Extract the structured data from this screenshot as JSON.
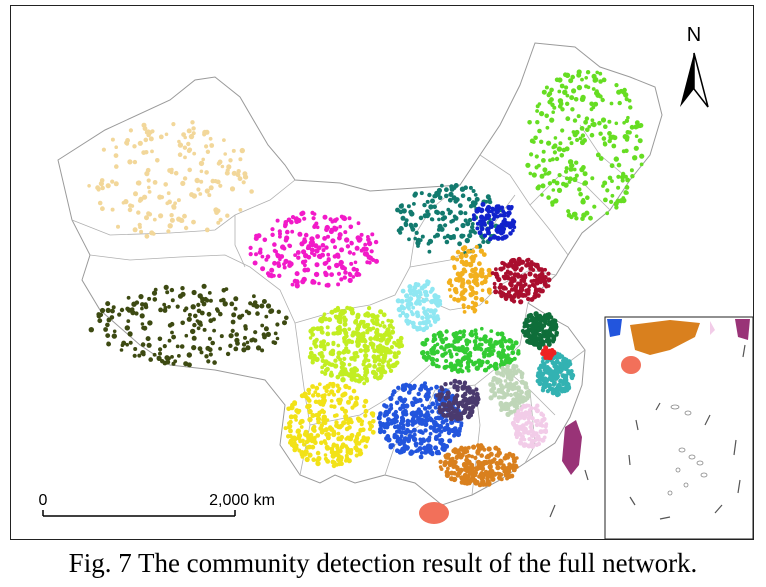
{
  "caption": "Fig. 7 The community detection result of the full network.",
  "north_arrow": {
    "label": "N"
  },
  "scale_bar": {
    "start_label": "0",
    "end_label": "2,000 km"
  },
  "communities": [
    {
      "id": "xinjiang",
      "color": "#f2d79a"
    },
    {
      "id": "tibet",
      "color": "#3d4a12"
    },
    {
      "id": "gansu-qinghai",
      "color": "#f21ac8"
    },
    {
      "id": "inner-mongolia-north",
      "color": "#127a6e"
    },
    {
      "id": "northeast",
      "color": "#66dd22"
    },
    {
      "id": "beijing-hebei",
      "color": "#1122cc"
    },
    {
      "id": "shaanxi",
      "color": "#8fe7f2"
    },
    {
      "id": "shanxi-henan",
      "color": "#f2b01e"
    },
    {
      "id": "shandong",
      "color": "#aa0e2e"
    },
    {
      "id": "sichuan-chongqing",
      "color": "#c2ee22"
    },
    {
      "id": "central",
      "color": "#33cc33"
    },
    {
      "id": "jiangsu",
      "color": "#0f6e3a"
    },
    {
      "id": "yunnan",
      "color": "#f2e218"
    },
    {
      "id": "guizhou-hunan",
      "color": "#2255dd"
    },
    {
      "id": "jiangxi",
      "color": "#4a3a6e"
    },
    {
      "id": "anhui-zhejiang",
      "color": "#bfd6b8"
    },
    {
      "id": "shanghai-zhejiang",
      "color": "#33b2b2"
    },
    {
      "id": "fujian",
      "color": "#f2cce8"
    },
    {
      "id": "guangdong",
      "color": "#d9801e"
    },
    {
      "id": "hainan",
      "color": "#f2705a"
    },
    {
      "id": "taiwan",
      "color": "#993377"
    },
    {
      "id": "shanghai-core",
      "color": "#ee2222"
    }
  ]
}
